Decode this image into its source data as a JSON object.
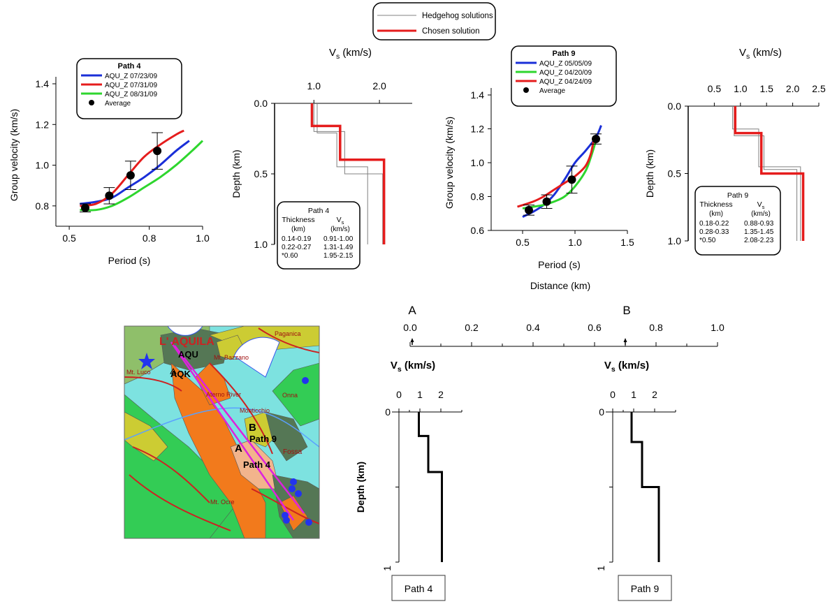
{
  "legend_top": {
    "hedgehog": "Hedgehog solutions",
    "chosen": "Chosen solution"
  },
  "colors": {
    "blue": "#1a2fd8",
    "red": "#e51c1c",
    "green": "#2ed62e",
    "grey": "#808080",
    "black": "#000000"
  },
  "dispersion_path4": {
    "title": "Path 4",
    "xlabel": "Period (s)",
    "ylabel": "Group velocity (km/s)",
    "xticks": [
      "0.5",
      "0.8",
      "1.0"
    ],
    "yticks": [
      "0.8",
      "1.0",
      "1.2",
      "1.4"
    ],
    "legend": [
      "AQU_Z 07/23/09",
      "AQU_Z 07/31/09",
      "AQU_Z 08/31/09",
      "Average"
    ]
  },
  "profile_path4": {
    "xlabel": "V",
    "xlabel_sub": "s",
    "xlabel_unit": " (km/s)",
    "ylabel": "Depth (km)",
    "xticks": [
      "1.0",
      "2.0"
    ],
    "yticks": [
      "0.0",
      "0.5",
      "1.0"
    ],
    "table": {
      "title": "Path 4",
      "h_thick": "Thickness",
      "h_thick_unit": "(km)",
      "h_vs": "V",
      "h_vs_sub": "s",
      "h_vs_unit": "(km/s)",
      "rows": [
        [
          "0.14-0.19",
          "0.91-1.00"
        ],
        [
          "0.22-0.27",
          "1.31-1.49"
        ],
        [
          "*0.60",
          "1.95-2.15"
        ]
      ]
    }
  },
  "dispersion_path9": {
    "title": "Path 9",
    "xlabel": "Period (s)",
    "ylabel": "Group velocity (km/s)",
    "xticks": [
      "0.5",
      "1.0",
      "1.5"
    ],
    "yticks": [
      "0.6",
      "0.8",
      "1.0",
      "1.2",
      "1.4"
    ],
    "legend": [
      "AQU_Z 05/05/09",
      "AQU_Z 04/20/09",
      "AQU_Z 04/24/09",
      "Average"
    ]
  },
  "profile_path9": {
    "xlabel": "V",
    "xlabel_sub": "s",
    "xlabel_unit": " (km/s)",
    "ylabel": "Depth (km)",
    "xticks": [
      "0.5",
      "1.0",
      "1.5",
      "2.0",
      "2.5"
    ],
    "yticks": [
      "0.0",
      "0.5",
      "1.0"
    ],
    "table": {
      "title": "Path 9",
      "h_thick": "Thickness",
      "h_thick_unit": "(km)",
      "h_vs": "V",
      "h_vs_sub": "s",
      "h_vs_unit": "(km/s)",
      "rows": [
        [
          "0.18-0.22",
          "0.88-0.93"
        ],
        [
          "0.28-0.33",
          "1.35-1.45"
        ],
        [
          "*0.50",
          "2.08-2.23"
        ]
      ]
    }
  },
  "distance_axis": {
    "label": "Distance (km)",
    "ticks": [
      "0.0",
      "0.2",
      "0.4",
      "0.6",
      "0.8",
      "1.0"
    ],
    "marker_a": "A",
    "marker_b": "B"
  },
  "map": {
    "town": "L' AQUILA",
    "places": [
      "Paganica",
      "Mt. Bazzano",
      "Mt. Luco",
      "Aterno River",
      "Onna",
      "Monticchio",
      "Fossa",
      "Mt. Ocre"
    ],
    "stations": [
      "AQU",
      "AQK"
    ],
    "paths": [
      "Path 9",
      "Path 4"
    ],
    "point_a": "A",
    "point_b": "B"
  },
  "bottom_path4": {
    "xlabel": "V",
    "xlabel_sub": "s",
    "xlabel_unit": " (km/s)",
    "ylabel": "Depth (km)",
    "xticks": [
      "0",
      "1",
      "2"
    ],
    "yticks": [
      "0",
      "1"
    ],
    "caption": "Path 4"
  },
  "bottom_path9": {
    "xlabel": "V",
    "xlabel_sub": "s",
    "xlabel_unit": " (km/s)",
    "xticks": [
      "0",
      "1",
      "2"
    ],
    "yticks": [
      "0",
      "1"
    ],
    "caption": "Path 9"
  },
  "chart_data": [
    {
      "type": "line",
      "panel": "dispersion_path4",
      "xlim": [
        0.45,
        1.0
      ],
      "ylim": [
        0.7,
        1.4
      ],
      "series": [
        {
          "name": "AQU_Z 07/23/09",
          "color": "blue",
          "x": [
            0.54,
            0.6,
            0.66,
            0.72,
            0.78,
            0.84,
            0.9,
            0.95
          ],
          "y": [
            0.81,
            0.82,
            0.84,
            0.89,
            0.94,
            1.0,
            1.07,
            1.12
          ]
        },
        {
          "name": "AQU_Z 07/31/09",
          "color": "red",
          "x": [
            0.54,
            0.6,
            0.66,
            0.72,
            0.78,
            0.84,
            0.9,
            0.93
          ],
          "y": [
            0.8,
            0.81,
            0.86,
            0.95,
            1.04,
            1.1,
            1.15,
            1.17
          ]
        },
        {
          "name": "AQU_Z 08/31/09",
          "color": "green",
          "x": [
            0.54,
            0.6,
            0.66,
            0.72,
            0.78,
            0.84,
            0.9,
            0.96,
            1.0
          ],
          "y": [
            0.78,
            0.78,
            0.8,
            0.84,
            0.89,
            0.94,
            1.0,
            1.07,
            1.12
          ]
        }
      ],
      "average": {
        "x": [
          0.56,
          0.65,
          0.73,
          0.83
        ],
        "y": [
          0.79,
          0.85,
          0.95,
          1.07
        ],
        "err": [
          0.02,
          0.04,
          0.07,
          0.09
        ]
      }
    },
    {
      "type": "line",
      "panel": "profile_path4",
      "xlim": [
        0.4,
        2.5
      ],
      "ylim": [
        0,
        1.0
      ],
      "series": [
        {
          "name": "Chosen solution",
          "color": "red",
          "x": [
            0.97,
            0.97,
            1.4,
            1.4,
            2.07,
            2.07
          ],
          "y": [
            0,
            0.16,
            0.16,
            0.4,
            0.4,
            1.0
          ]
        },
        {
          "name": "Hedgehog solutions",
          "color": "grey",
          "x": [
            1.0,
            1.0,
            1.47,
            1.47,
            2.05,
            2.05
          ],
          "y": [
            0,
            0.2,
            0.2,
            0.5,
            0.5,
            1.0
          ]
        },
        {
          "name": "Hedgehog solutions",
          "color": "grey",
          "x": [
            1.05,
            1.05,
            1.35,
            1.35,
            1.82,
            1.82
          ],
          "y": [
            0,
            0.21,
            0.21,
            0.45,
            0.45,
            1.0
          ]
        }
      ]
    },
    {
      "type": "line",
      "panel": "dispersion_path9",
      "xlim": [
        0.2,
        1.5
      ],
      "ylim": [
        0.6,
        1.4
      ],
      "series": [
        {
          "name": "AQU_Z 05/05/09",
          "color": "blue",
          "x": [
            0.5,
            0.6,
            0.7,
            0.8,
            0.9,
            1.0,
            1.1,
            1.2,
            1.25
          ],
          "y": [
            0.68,
            0.71,
            0.75,
            0.81,
            0.9,
            1.0,
            1.07,
            1.15,
            1.22
          ]
        },
        {
          "name": "AQU_Z 04/20/09",
          "color": "green",
          "x": [
            0.5,
            0.6,
            0.7,
            0.8,
            0.9,
            1.0,
            1.1,
            1.15,
            1.2
          ],
          "y": [
            0.73,
            0.74,
            0.75,
            0.77,
            0.8,
            0.86,
            0.95,
            1.03,
            1.13
          ]
        },
        {
          "name": "AQU_Z 04/24/09",
          "color": "red",
          "x": [
            0.45,
            0.6,
            0.7,
            0.8,
            0.9,
            1.0,
            1.1,
            1.15,
            1.18
          ],
          "y": [
            0.74,
            0.77,
            0.8,
            0.84,
            0.88,
            0.92,
            0.98,
            1.05,
            1.14
          ]
        }
      ],
      "average": {
        "x": [
          0.56,
          0.73,
          0.97,
          1.2
        ],
        "y": [
          0.72,
          0.77,
          0.9,
          1.14
        ],
        "err": [
          0.03,
          0.04,
          0.08,
          0.03
        ]
      }
    },
    {
      "type": "line",
      "panel": "profile_path9",
      "xlim": [
        0.0,
        2.5
      ],
      "ylim": [
        0,
        1.0
      ],
      "series": [
        {
          "name": "Chosen solution",
          "color": "red",
          "x": [
            0.9,
            0.9,
            1.4,
            1.4,
            2.2,
            2.2
          ],
          "y": [
            0,
            0.2,
            0.2,
            0.5,
            0.5,
            1.0
          ]
        },
        {
          "name": "Hedgehog solutions",
          "color": "grey",
          "x": [
            0.85,
            0.85,
            1.35,
            1.35,
            2.15,
            2.15
          ],
          "y": [
            0,
            0.17,
            0.17,
            0.45,
            0.45,
            1.0
          ]
        },
        {
          "name": "Hedgehog solutions",
          "color": "grey",
          "x": [
            0.88,
            0.88,
            1.45,
            1.45,
            2.08,
            2.08
          ],
          "y": [
            0,
            0.22,
            0.22,
            0.47,
            0.47,
            1.0
          ]
        }
      ]
    },
    {
      "type": "line",
      "panel": "bottom_path4",
      "xlim": [
        0,
        3
      ],
      "ylim": [
        0,
        1
      ],
      "series": [
        {
          "color": "black",
          "x": [
            0.95,
            0.95,
            1.4,
            1.4,
            2.05,
            2.05
          ],
          "y": [
            0,
            0.16,
            0.16,
            0.4,
            0.4,
            1.0
          ]
        }
      ]
    },
    {
      "type": "line",
      "panel": "bottom_path9",
      "xlim": [
        0,
        3
      ],
      "ylim": [
        0,
        1
      ],
      "series": [
        {
          "color": "black",
          "x": [
            0.9,
            0.9,
            1.4,
            1.4,
            2.2,
            2.2
          ],
          "y": [
            0,
            0.2,
            0.2,
            0.5,
            0.5,
            1.0
          ]
        }
      ]
    }
  ]
}
